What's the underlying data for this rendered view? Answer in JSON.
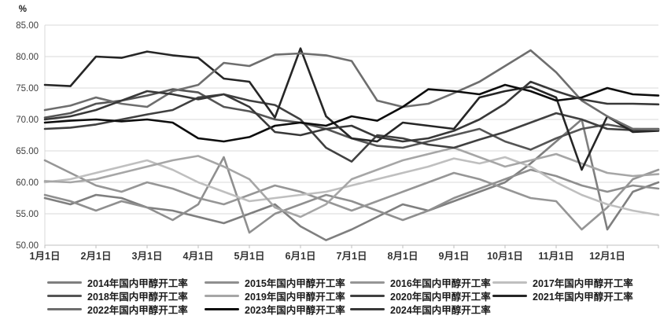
{
  "chart_data": {
    "type": "line",
    "title": "",
    "unit_label": "%",
    "xlabel": "",
    "ylabel": "%",
    "ylim": [
      50,
      85
    ],
    "y_tick_step": 5,
    "y_tick_labels": [
      "85.00",
      "80.00",
      "75.00",
      "70.00",
      "65.00",
      "60.00",
      "55.00",
      "50.00"
    ],
    "x_tick_labels": [
      "1月1日",
      "2月1日",
      "3月1日",
      "4月1日",
      "5月1日",
      "6月1日",
      "7月1日",
      "8月1日",
      "9月1日",
      "10月1日",
      "11月1日",
      "12月1日"
    ],
    "grid": true,
    "legend_position": "bottom",
    "legend_rows": [
      [
        0,
        1,
        2,
        3
      ],
      [
        4,
        5,
        6,
        7
      ],
      [
        8,
        9,
        10
      ]
    ],
    "x_sampling": "approx. semi-monthly from 1月1日 to 12月31日",
    "series": [
      {
        "name": "2014年国内甲醇开工率",
        "color": "#7f7f7f",
        "values": [
          57.5,
          56.5,
          58.0,
          57.5,
          56.0,
          55.5,
          54.5,
          53.5,
          55.0,
          56.5,
          53.0,
          50.8,
          52.5,
          54.5,
          56.5,
          55.5,
          57.0,
          58.5,
          60.0,
          63.0,
          66.5,
          70.0,
          52.5,
          58.5,
          60.0
        ]
      },
      {
        "name": "2015年国内甲醇开工率",
        "color": "#8f8f8f",
        "values": [
          58.0,
          57.0,
          55.5,
          57.0,
          56.0,
          54.0,
          56.5,
          64.0,
          52.0,
          55.0,
          56.5,
          58.0,
          57.0,
          55.5,
          54.0,
          55.5,
          57.5,
          59.0,
          60.5,
          62.0,
          61.0,
          59.5,
          58.5,
          59.5,
          59.0
        ]
      },
      {
        "name": "2016年国内甲醇开工率",
        "color": "#969696",
        "values": [
          63.5,
          61.5,
          59.5,
          58.5,
          60.0,
          59.0,
          57.5,
          56.5,
          58.0,
          59.5,
          58.5,
          57.0,
          55.5,
          57.0,
          58.5,
          60.0,
          61.5,
          60.5,
          59.0,
          57.5,
          57.0,
          52.5,
          56.0,
          60.5,
          62.0
        ]
      },
      {
        "name": "2017年国内甲醇开工率",
        "color": "#bfbfbf",
        "values": [
          60.0,
          60.5,
          61.5,
          62.5,
          63.5,
          62.0,
          60.0,
          58.5,
          57.0,
          57.5,
          58.0,
          58.5,
          59.5,
          60.5,
          61.5,
          62.5,
          63.8,
          63.0,
          64.0,
          62.5,
          60.0,
          58.0,
          56.5,
          55.5,
          54.8
        ]
      },
      {
        "name": "2018年国内甲醇开工率",
        "color": "#555555",
        "values": [
          70.3,
          71.0,
          72.5,
          73.0,
          73.8,
          74.8,
          74.3,
          72.0,
          71.3,
          70.0,
          69.5,
          68.5,
          67.0,
          65.8,
          65.5,
          66.5,
          67.5,
          68.5,
          66.5,
          65.2,
          67.0,
          68.5,
          69.2,
          68.5,
          68.5
        ]
      },
      {
        "name": "2019年国内甲醇开工率",
        "color": "#a6a6a6",
        "values": [
          60.2,
          60.0,
          60.5,
          61.5,
          62.5,
          63.5,
          64.2,
          62.5,
          60.5,
          56.0,
          54.5,
          56.5,
          60.5,
          62.0,
          63.5,
          64.5,
          65.5,
          64.0,
          62.5,
          63.5,
          64.5,
          63.0,
          61.5,
          61.0,
          61.3
        ]
      },
      {
        "name": "2020年国内甲醇开工率",
        "color": "#404040",
        "values": [
          68.5,
          68.7,
          69.2,
          70.0,
          70.8,
          71.5,
          73.5,
          74.0,
          73.0,
          72.3,
          70.0,
          65.5,
          63.3,
          67.5,
          67.0,
          66.0,
          65.5,
          66.8,
          68.0,
          69.5,
          71.0,
          70.0,
          68.5,
          68.3,
          68.4
        ]
      },
      {
        "name": "2021年国内甲醇开工率",
        "color": "#262626",
        "values": [
          75.5,
          75.3,
          80.0,
          79.8,
          80.8,
          80.2,
          79.8,
          76.5,
          76.0,
          70.3,
          81.3,
          70.5,
          67.0,
          66.5,
          69.5,
          69.0,
          68.5,
          73.5,
          74.5,
          75.2,
          73.5,
          62.0,
          70.5,
          68.0,
          68.2
        ]
      },
      {
        "name": "2022年国内甲醇开工率",
        "color": "#6e6e6e",
        "values": [
          71.5,
          72.2,
          73.5,
          72.5,
          72.0,
          74.5,
          75.5,
          79.0,
          78.5,
          80.3,
          80.5,
          80.2,
          79.3,
          73.0,
          72.0,
          72.5,
          74.2,
          76.0,
          78.5,
          81.0,
          77.5,
          73.0,
          70.5,
          68.5,
          68.4
        ]
      },
      {
        "name": "2023年国内甲醇开工率",
        "color": "#0d0d0d",
        "values": [
          69.5,
          69.8,
          70.0,
          69.7,
          70.0,
          69.5,
          67.0,
          66.5,
          67.2,
          69.0,
          69.5,
          69.0,
          70.5,
          69.8,
          72.0,
          74.8,
          74.5,
          74.0,
          75.5,
          74.5,
          73.0,
          73.5,
          75.0,
          74.0,
          73.8
        ]
      },
      {
        "name": "2024年国内甲醇开工率",
        "color": "#383838",
        "values": [
          70.0,
          70.5,
          71.5,
          73.0,
          74.5,
          74.0,
          73.2,
          74.0,
          72.0,
          68.0,
          67.5,
          68.5,
          69.0,
          67.2,
          66.5,
          67.0,
          68.2,
          70.0,
          72.5,
          76.0,
          74.5,
          73.2,
          72.5,
          72.5,
          72.4
        ]
      }
    ]
  }
}
